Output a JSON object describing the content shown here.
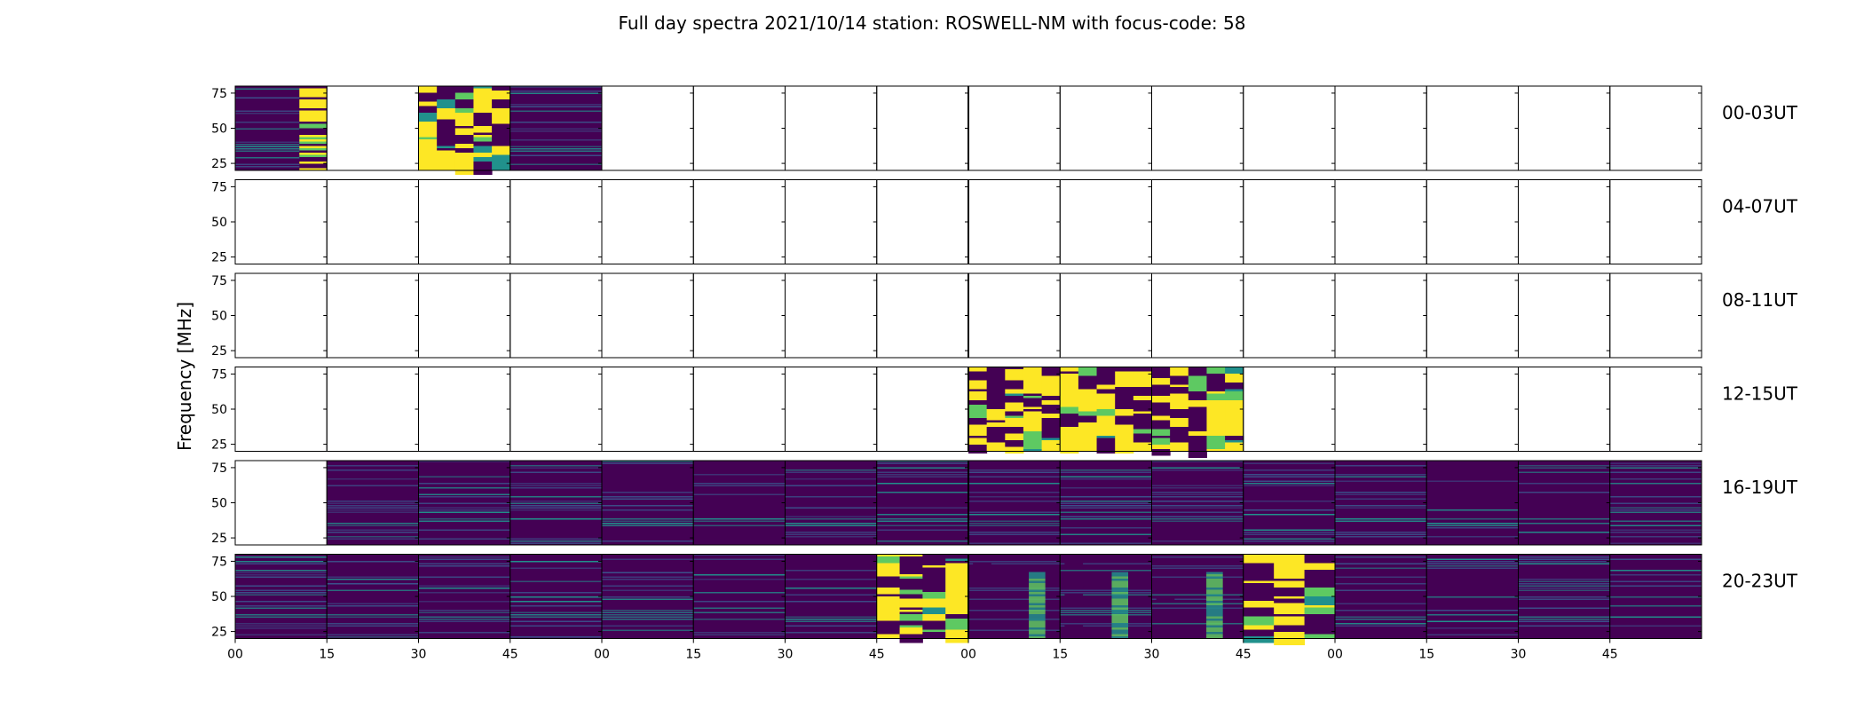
{
  "title": "Full day spectra 2021/10/14 station: ROSWELL-NM with focus-code: 58",
  "chart_data": {
    "type": "heatmap",
    "title": "Full day spectra 2021/10/14 station: ROSWELL-NM with focus-code: 58",
    "ylabel": "Frequency [MHz]",
    "xlabel": "",
    "ylim": [
      20,
      80
    ],
    "yticks": [
      "25",
      "50",
      "75"
    ],
    "xticks": [
      "00",
      "15",
      "30",
      "45",
      "00",
      "15",
      "30",
      "45",
      "00",
      "15",
      "30",
      "45",
      "00",
      "15",
      "30",
      "45"
    ],
    "rows": [
      {
        "label": "00-03UT",
        "panels": [
          "partial-burst",
          "empty",
          "burst",
          "quiet",
          "empty",
          "empty",
          "empty",
          "empty",
          "empty",
          "empty",
          "empty",
          "empty",
          "empty",
          "empty",
          "empty",
          "empty"
        ]
      },
      {
        "label": "04-07UT",
        "panels": [
          "empty",
          "empty",
          "empty",
          "empty",
          "empty",
          "empty",
          "empty",
          "empty",
          "empty",
          "empty",
          "empty",
          "empty",
          "empty",
          "empty",
          "empty",
          "empty"
        ]
      },
      {
        "label": "08-11UT",
        "panels": [
          "empty",
          "empty",
          "empty",
          "empty",
          "empty",
          "empty",
          "empty",
          "empty",
          "empty",
          "empty",
          "empty",
          "empty",
          "empty",
          "empty",
          "empty",
          "empty"
        ]
      },
      {
        "label": "12-15UT",
        "panels": [
          "empty",
          "empty",
          "empty",
          "empty",
          "empty",
          "empty",
          "empty",
          "empty",
          "burst",
          "burst",
          "burst",
          "empty",
          "empty",
          "empty",
          "empty",
          "empty"
        ]
      },
      {
        "label": "16-19UT",
        "panels": [
          "empty",
          "quiet",
          "quiet",
          "quiet",
          "quiet",
          "quiet",
          "quiet",
          "quiet",
          "quiet",
          "quiet",
          "quiet",
          "quiet",
          "quiet",
          "quiet",
          "quiet",
          "quiet"
        ]
      },
      {
        "label": "20-23UT",
        "panels": [
          "quiet",
          "quiet",
          "quiet",
          "quiet",
          "quiet",
          "quiet",
          "quiet",
          "burst",
          "active",
          "active",
          "active",
          "burst",
          "quiet",
          "quiet",
          "quiet",
          "quiet"
        ]
      }
    ],
    "colormap": [
      "#440154",
      "#3b528b",
      "#21918c",
      "#5ec962",
      "#fde725"
    ],
    "grid": false
  }
}
